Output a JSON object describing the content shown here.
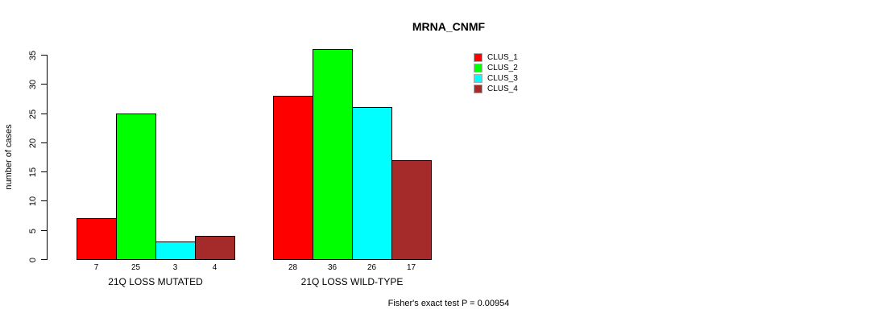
{
  "title": "MRNA_CNMF",
  "footer": "Fisher's exact test P = 0.00954",
  "chart_data": {
    "type": "bar",
    "title": "MRNA_CNMF",
    "ylabel": "number of cases",
    "xlabel": "",
    "ylim": [
      0,
      35
    ],
    "yticks": [
      0,
      5,
      10,
      15,
      20,
      25,
      30,
      35
    ],
    "grid": "off",
    "legend_position": "top-right",
    "bar_value_labels": true,
    "categories": [
      "21Q LOSS MUTATED",
      "21Q LOSS WILD-TYPE"
    ],
    "series": [
      {
        "name": "CLUS_1",
        "color": "#ff0000",
        "values": [
          7,
          28
        ]
      },
      {
        "name": "CLUS_2",
        "color": "#00ff00",
        "values": [
          25,
          36
        ]
      },
      {
        "name": "CLUS_3",
        "color": "#00ffff",
        "values": [
          3,
          26
        ]
      },
      {
        "name": "CLUS_4",
        "color": "#a52a2a",
        "values": [
          4,
          17
        ]
      }
    ],
    "annotation": "Fisher's exact test P = 0.00954"
  }
}
